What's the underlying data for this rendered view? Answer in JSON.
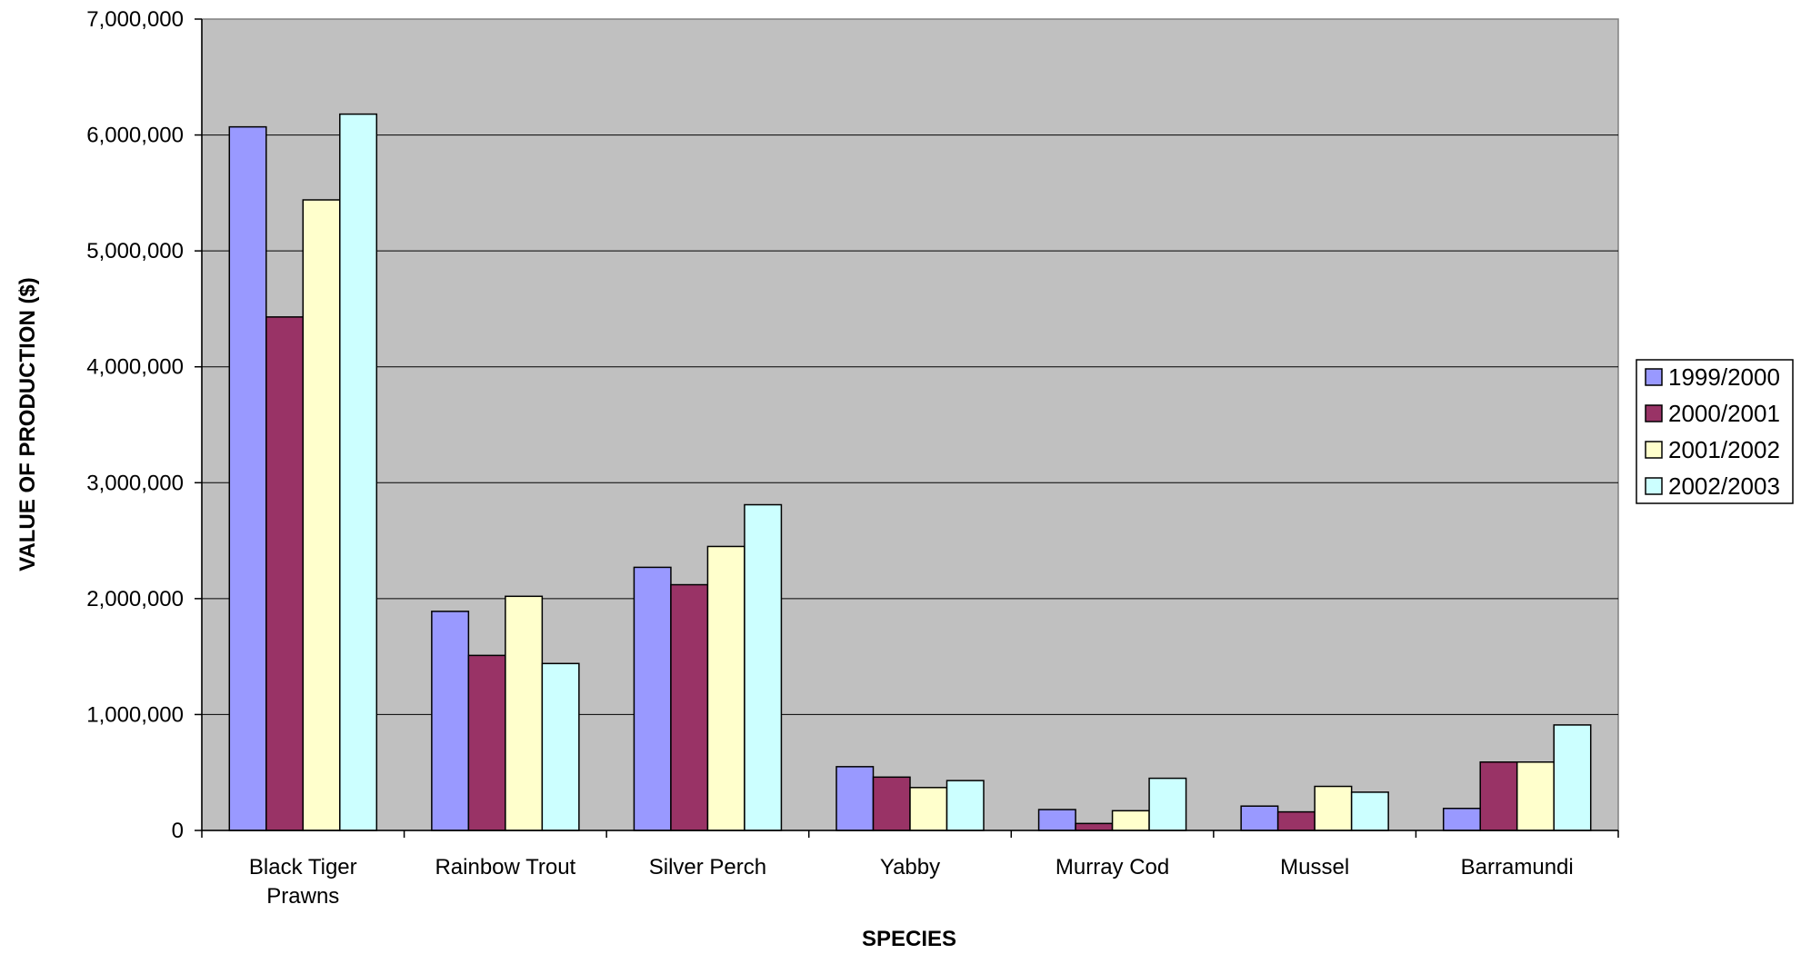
{
  "chart_data": {
    "type": "bar",
    "title": "",
    "xlabel": "SPECIES",
    "ylabel": "VALUE OF PRODUCTION ($)",
    "ylim": [
      0,
      7000000
    ],
    "ytick_values": [
      0,
      1000000,
      2000000,
      3000000,
      4000000,
      5000000,
      6000000,
      7000000
    ],
    "ytick_labels": [
      "0",
      "1,000,000",
      "2,000,000",
      "3,000,000",
      "4,000,000",
      "5,000,000",
      "6,000,000",
      "7,000,000"
    ],
    "categories": [
      "Black Tiger Prawns",
      "Rainbow Trout",
      "Silver Perch",
      "Yabby",
      "Murray Cod",
      "Mussel",
      "Barramundi"
    ],
    "category_lines": [
      [
        "Black Tiger",
        "Prawns"
      ],
      [
        "Rainbow Trout"
      ],
      [
        "Silver Perch"
      ],
      [
        "Yabby"
      ],
      [
        "Murray Cod"
      ],
      [
        "Mussel"
      ],
      [
        "Barramundi"
      ]
    ],
    "series": [
      {
        "name": "1999/2000",
        "color": "#9999ff",
        "values": [
          6070000,
          1890000,
          2270000,
          550000,
          180000,
          210000,
          190000
        ]
      },
      {
        "name": "2000/2001",
        "color": "#993366",
        "values": [
          4430000,
          1510000,
          2120000,
          460000,
          60000,
          160000,
          590000
        ]
      },
      {
        "name": "2001/2002",
        "color": "#ffffcc",
        "values": [
          5440000,
          2020000,
          2450000,
          370000,
          170000,
          380000,
          590000
        ]
      },
      {
        "name": "2002/2003",
        "color": "#ccffff",
        "values": [
          6180000,
          1440000,
          2810000,
          430000,
          450000,
          330000,
          910000
        ]
      }
    ],
    "plot_background": "#c0c0c0",
    "grid": true,
    "legend_position": "right"
  }
}
